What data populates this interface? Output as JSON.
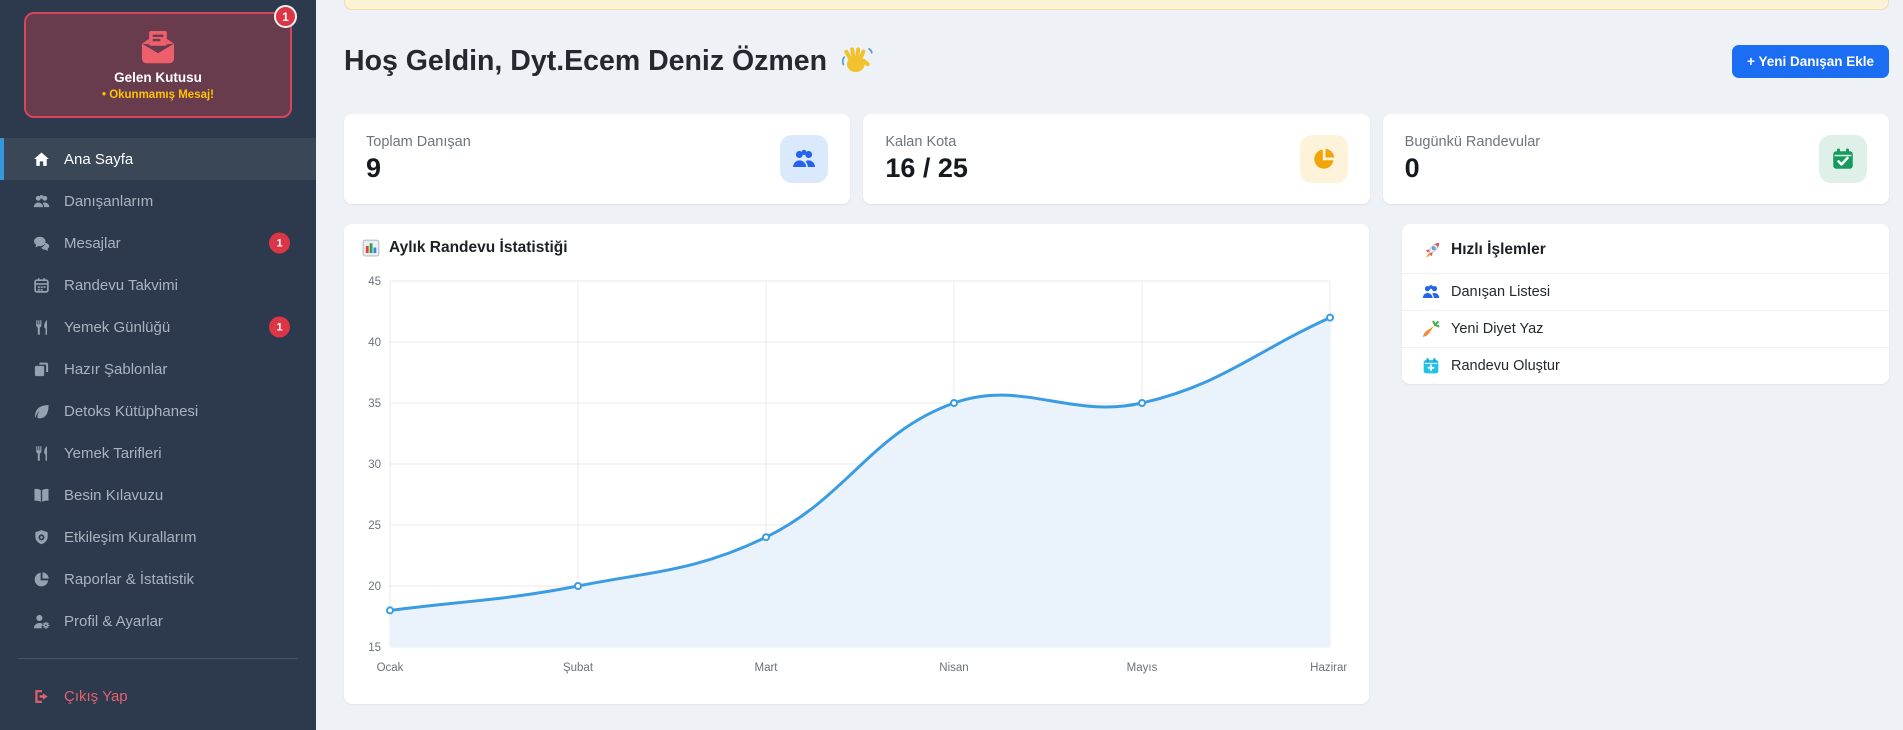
{
  "sidebar": {
    "inbox_card": {
      "title": "Gelen Kutusu",
      "subtitle": "• Okunmamış Mesaj!",
      "badge": "1"
    },
    "items": [
      {
        "key": "ana-sayfa",
        "label": "Ana Sayfa",
        "icon": "home",
        "active": true
      },
      {
        "key": "danisanlarim",
        "label": "Danışanlarım",
        "icon": "users"
      },
      {
        "key": "mesajlar",
        "label": "Mesajlar",
        "icon": "comments",
        "badge": "1"
      },
      {
        "key": "randevu-takvimi",
        "label": "Randevu Takvimi",
        "icon": "calendar"
      },
      {
        "key": "yemek-gunlugu",
        "label": "Yemek Günlüğü",
        "icon": "utensils",
        "badge": "1"
      },
      {
        "key": "hazir-sablonlar",
        "label": "Hazır Şablonlar",
        "icon": "copy"
      },
      {
        "key": "detoks-kutuphanesi",
        "label": "Detoks Kütüphanesi",
        "icon": "leaf"
      },
      {
        "key": "yemek-tarifleri",
        "label": "Yemek Tarifleri",
        "icon": "utensils"
      },
      {
        "key": "besin-kilavuzu",
        "label": "Besin Kılavuzu",
        "icon": "book"
      },
      {
        "key": "etkilesim-kurallarim",
        "label": "Etkileşim Kurallarım",
        "icon": "shield"
      },
      {
        "key": "raporlar-istatistik",
        "label": "Raporlar & İstatistik",
        "icon": "pie"
      },
      {
        "key": "profil-ayarlar",
        "label": "Profil & Ayarlar",
        "icon": "user-gear"
      }
    ],
    "logout": {
      "key": "cikis-yap",
      "label": "Çıkış Yap",
      "icon": "sign-out"
    }
  },
  "header": {
    "title": "Hoş Geldin, Dyt.Ecem Deniz Özmen",
    "add_button": "+ Yeni Danışan Ekle"
  },
  "stats": [
    {
      "key": "toplam-danisan",
      "label": "Toplam Danışan",
      "value": "9",
      "icon": "users",
      "color": "#2563eb",
      "bg": "#dbe9fd"
    },
    {
      "key": "kalan-kota",
      "label": "Kalan Kota",
      "value": "16 / 25",
      "icon": "pie",
      "color": "#f0a50a",
      "bg": "#fdf3da"
    },
    {
      "key": "bugunku-randevular",
      "label": "Bugünkü Randevular",
      "value": "0",
      "icon": "calendar-check",
      "color": "#169a5f",
      "bg": "#def0e7"
    }
  ],
  "chart_card": {
    "title": "Aylık Randevu İstatistiği"
  },
  "chart_data": {
    "type": "line",
    "title": "Aylık Randevu İstatistiği",
    "categories": [
      "Ocak",
      "Şubat",
      "Mart",
      "Nisan",
      "Mayıs",
      "Haziran"
    ],
    "values": [
      18,
      20,
      24,
      35,
      35,
      42
    ],
    "ylim": [
      15,
      45
    ],
    "ytick_step": 5,
    "grid": true,
    "legend": false,
    "smooth": true,
    "line_color": "#3b9ce2",
    "fill_color": "#eaf3fb",
    "grid_color": "#e9eaec",
    "tick_color": "#6a727a"
  },
  "quick_actions": {
    "title": "Hızlı İşlemler",
    "items": [
      {
        "key": "danisan-listesi",
        "label": "Danışan Listesi",
        "icon": "users",
        "color": "#2563eb"
      },
      {
        "key": "yeni-diyet-yaz",
        "label": "Yeni Diyet Yaz",
        "icon": "carrot",
        "color": ""
      },
      {
        "key": "randevu-olustur",
        "label": "Randevu Oluştur",
        "icon": "calendar-plus",
        "color": ""
      }
    ]
  }
}
